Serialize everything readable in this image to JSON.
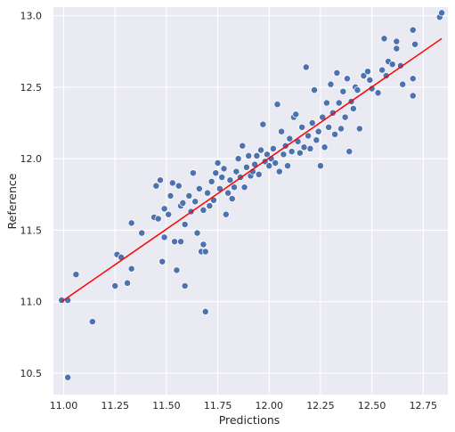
{
  "chart_data": {
    "type": "scatter",
    "xlabel": "Predictions",
    "ylabel": "Reference",
    "xlim": [
      10.95,
      12.87
    ],
    "ylim": [
      10.35,
      13.06
    ],
    "xticks": [
      11.0,
      11.25,
      11.5,
      11.75,
      12.0,
      12.25,
      12.5,
      12.75
    ],
    "xtick_labels": [
      "11.00",
      "11.25",
      "11.50",
      "11.75",
      "12.00",
      "12.25",
      "12.50",
      "12.75"
    ],
    "yticks": [
      10.5,
      11.0,
      11.5,
      12.0,
      12.5,
      13.0
    ],
    "ytick_labels": [
      "10.5",
      "11.0",
      "11.5",
      "12.0",
      "12.5",
      "13.0"
    ],
    "grid": true,
    "background_color": "#EAEAF2",
    "grid_color": "#FFFFFF",
    "point_color": "#4C72B0",
    "fit_line_color": "#FF0000",
    "fit_line": {
      "x": [
        10.99,
        12.84
      ],
      "y": [
        11.0,
        12.84
      ]
    },
    "points": [
      {
        "x": 10.99,
        "y": 11.01
      },
      {
        "x": 11.02,
        "y": 11.01
      },
      {
        "x": 11.06,
        "y": 11.19
      },
      {
        "x": 11.02,
        "y": 10.47
      },
      {
        "x": 11.14,
        "y": 10.86
      },
      {
        "x": 11.25,
        "y": 11.11
      },
      {
        "x": 11.26,
        "y": 11.33
      },
      {
        "x": 11.28,
        "y": 11.31
      },
      {
        "x": 11.31,
        "y": 11.13
      },
      {
        "x": 11.33,
        "y": 11.23
      },
      {
        "x": 11.33,
        "y": 11.55
      },
      {
        "x": 11.38,
        "y": 11.48
      },
      {
        "x": 11.44,
        "y": 11.59
      },
      {
        "x": 11.45,
        "y": 11.81
      },
      {
        "x": 11.47,
        "y": 11.85
      },
      {
        "x": 11.46,
        "y": 11.58
      },
      {
        "x": 11.48,
        "y": 11.28
      },
      {
        "x": 11.49,
        "y": 11.45
      },
      {
        "x": 11.49,
        "y": 11.65
      },
      {
        "x": 11.51,
        "y": 11.61
      },
      {
        "x": 11.52,
        "y": 11.74
      },
      {
        "x": 11.53,
        "y": 11.83
      },
      {
        "x": 11.54,
        "y": 11.42
      },
      {
        "x": 11.55,
        "y": 11.22
      },
      {
        "x": 11.56,
        "y": 11.81
      },
      {
        "x": 11.57,
        "y": 11.42
      },
      {
        "x": 11.57,
        "y": 11.67
      },
      {
        "x": 11.58,
        "y": 11.69
      },
      {
        "x": 11.59,
        "y": 11.54
      },
      {
        "x": 11.59,
        "y": 11.11
      },
      {
        "x": 11.61,
        "y": 11.74
      },
      {
        "x": 11.62,
        "y": 11.63
      },
      {
        "x": 11.63,
        "y": 11.9
      },
      {
        "x": 11.64,
        "y": 11.7
      },
      {
        "x": 11.65,
        "y": 11.48
      },
      {
        "x": 11.66,
        "y": 11.79
      },
      {
        "x": 11.67,
        "y": 11.35
      },
      {
        "x": 11.68,
        "y": 11.4
      },
      {
        "x": 11.68,
        "y": 11.64
      },
      {
        "x": 11.69,
        "y": 11.35
      },
      {
        "x": 11.69,
        "y": 10.93
      },
      {
        "x": 11.7,
        "y": 11.76
      },
      {
        "x": 11.71,
        "y": 11.67
      },
      {
        "x": 11.72,
        "y": 11.84
      },
      {
        "x": 11.73,
        "y": 11.71
      },
      {
        "x": 11.74,
        "y": 11.9
      },
      {
        "x": 11.75,
        "y": 11.97
      },
      {
        "x": 11.76,
        "y": 11.79
      },
      {
        "x": 11.77,
        "y": 11.87
      },
      {
        "x": 11.78,
        "y": 11.93
      },
      {
        "x": 11.79,
        "y": 11.61
      },
      {
        "x": 11.8,
        "y": 11.76
      },
      {
        "x": 11.81,
        "y": 11.85
      },
      {
        "x": 11.82,
        "y": 11.72
      },
      {
        "x": 11.83,
        "y": 11.8
      },
      {
        "x": 11.84,
        "y": 11.91
      },
      {
        "x": 11.85,
        "y": 12.0
      },
      {
        "x": 11.86,
        "y": 11.87
      },
      {
        "x": 11.87,
        "y": 12.09
      },
      {
        "x": 11.88,
        "y": 11.8
      },
      {
        "x": 11.89,
        "y": 11.94
      },
      {
        "x": 11.9,
        "y": 12.02
      },
      {
        "x": 11.91,
        "y": 11.88
      },
      {
        "x": 11.92,
        "y": 11.91
      },
      {
        "x": 11.93,
        "y": 11.96
      },
      {
        "x": 11.94,
        "y": 12.02
      },
      {
        "x": 11.95,
        "y": 11.89
      },
      {
        "x": 11.96,
        "y": 12.06
      },
      {
        "x": 11.97,
        "y": 12.24
      },
      {
        "x": 11.98,
        "y": 11.98
      },
      {
        "x": 11.99,
        "y": 12.03
      },
      {
        "x": 12.0,
        "y": 11.95
      },
      {
        "x": 12.01,
        "y": 12.0
      },
      {
        "x": 12.02,
        "y": 12.07
      },
      {
        "x": 12.03,
        "y": 11.97
      },
      {
        "x": 12.04,
        "y": 12.38
      },
      {
        "x": 12.05,
        "y": 11.91
      },
      {
        "x": 12.06,
        "y": 12.19
      },
      {
        "x": 12.07,
        "y": 12.03
      },
      {
        "x": 12.08,
        "y": 12.09
      },
      {
        "x": 12.09,
        "y": 11.95
      },
      {
        "x": 12.1,
        "y": 12.14
      },
      {
        "x": 12.11,
        "y": 12.05
      },
      {
        "x": 12.12,
        "y": 12.29
      },
      {
        "x": 12.13,
        "y": 12.31
      },
      {
        "x": 12.14,
        "y": 12.12
      },
      {
        "x": 12.15,
        "y": 12.04
      },
      {
        "x": 12.16,
        "y": 12.22
      },
      {
        "x": 12.17,
        "y": 12.08
      },
      {
        "x": 12.18,
        "y": 12.64
      },
      {
        "x": 12.19,
        "y": 12.16
      },
      {
        "x": 12.2,
        "y": 12.07
      },
      {
        "x": 12.21,
        "y": 12.25
      },
      {
        "x": 12.22,
        "y": 12.48
      },
      {
        "x": 12.23,
        "y": 12.13
      },
      {
        "x": 12.24,
        "y": 12.19
      },
      {
        "x": 12.25,
        "y": 11.95
      },
      {
        "x": 12.26,
        "y": 12.29
      },
      {
        "x": 12.27,
        "y": 12.08
      },
      {
        "x": 12.28,
        "y": 12.39
      },
      {
        "x": 12.29,
        "y": 12.22
      },
      {
        "x": 12.3,
        "y": 12.52
      },
      {
        "x": 12.31,
        "y": 12.32
      },
      {
        "x": 12.32,
        "y": 12.17
      },
      {
        "x": 12.33,
        "y": 12.6
      },
      {
        "x": 12.34,
        "y": 12.39
      },
      {
        "x": 12.35,
        "y": 12.21
      },
      {
        "x": 12.36,
        "y": 12.47
      },
      {
        "x": 12.37,
        "y": 12.29
      },
      {
        "x": 12.38,
        "y": 12.56
      },
      {
        "x": 12.39,
        "y": 12.05
      },
      {
        "x": 12.4,
        "y": 12.4
      },
      {
        "x": 12.41,
        "y": 12.35
      },
      {
        "x": 12.42,
        "y": 12.5
      },
      {
        "x": 12.43,
        "y": 12.48
      },
      {
        "x": 12.44,
        "y": 12.21
      },
      {
        "x": 12.46,
        "y": 12.58
      },
      {
        "x": 12.48,
        "y": 12.61
      },
      {
        "x": 12.49,
        "y": 12.55
      },
      {
        "x": 12.5,
        "y": 12.49
      },
      {
        "x": 12.53,
        "y": 12.46
      },
      {
        "x": 12.55,
        "y": 12.62
      },
      {
        "x": 12.56,
        "y": 12.84
      },
      {
        "x": 12.57,
        "y": 12.58
      },
      {
        "x": 12.58,
        "y": 12.68
      },
      {
        "x": 12.6,
        "y": 12.66
      },
      {
        "x": 12.62,
        "y": 12.82
      },
      {
        "x": 12.62,
        "y": 12.77
      },
      {
        "x": 12.64,
        "y": 12.65
      },
      {
        "x": 12.65,
        "y": 12.52
      },
      {
        "x": 12.7,
        "y": 12.9
      },
      {
        "x": 12.7,
        "y": 12.44
      },
      {
        "x": 12.7,
        "y": 12.56
      },
      {
        "x": 12.71,
        "y": 12.8
      },
      {
        "x": 12.83,
        "y": 12.99
      },
      {
        "x": 12.84,
        "y": 13.02
      }
    ]
  }
}
